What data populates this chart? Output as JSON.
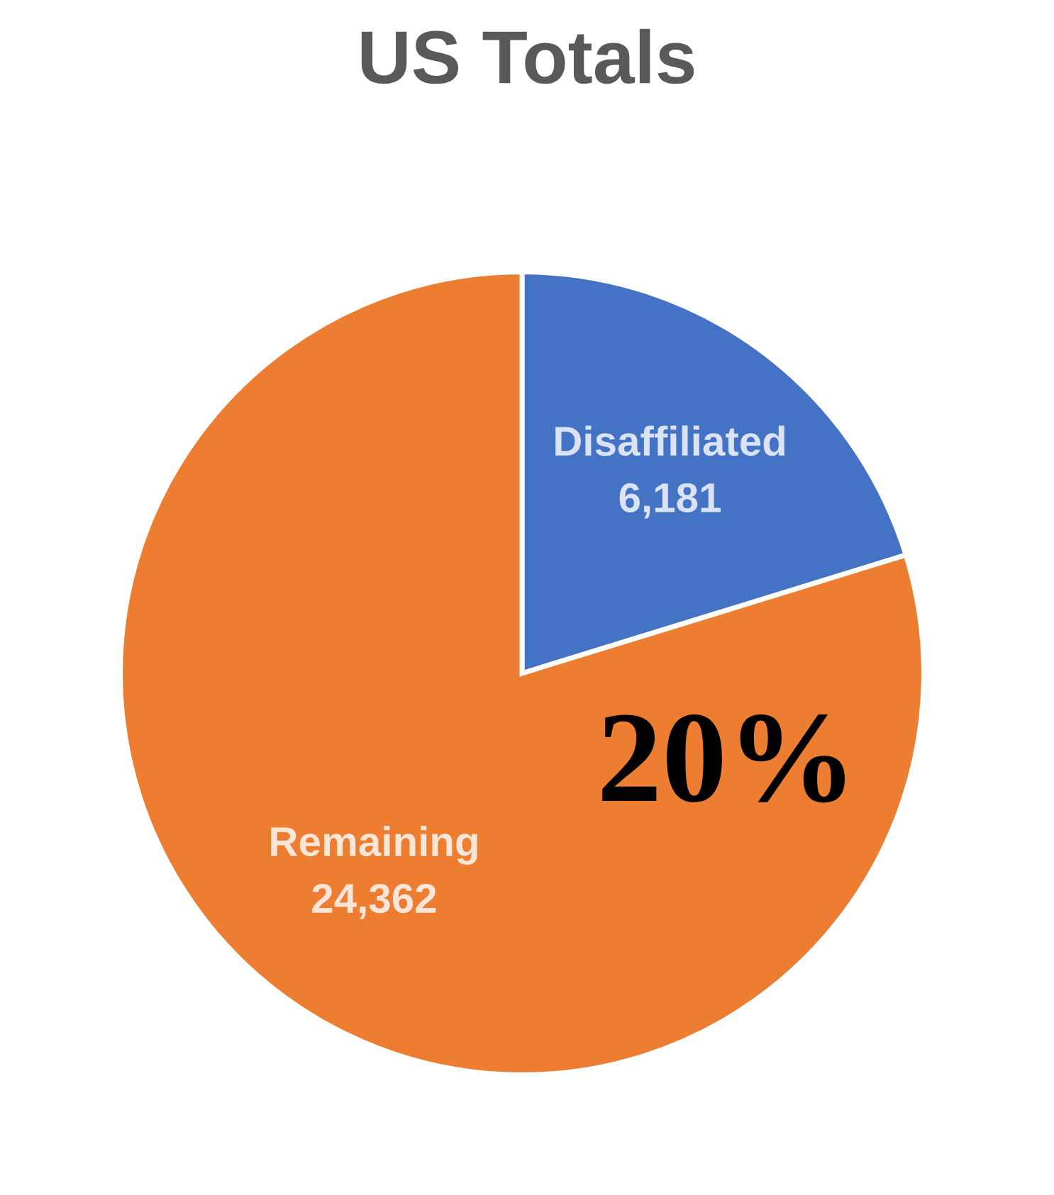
{
  "chart_data": {
    "type": "pie",
    "title": "US Totals",
    "categories": [
      "Disaffiliated",
      "Remaining"
    ],
    "values": [
      6181,
      24362
    ],
    "colors": [
      "#4472c4",
      "#ed7d31"
    ],
    "value_labels": [
      "6,181",
      "24,362"
    ],
    "annotations": [
      "20%"
    ]
  }
}
